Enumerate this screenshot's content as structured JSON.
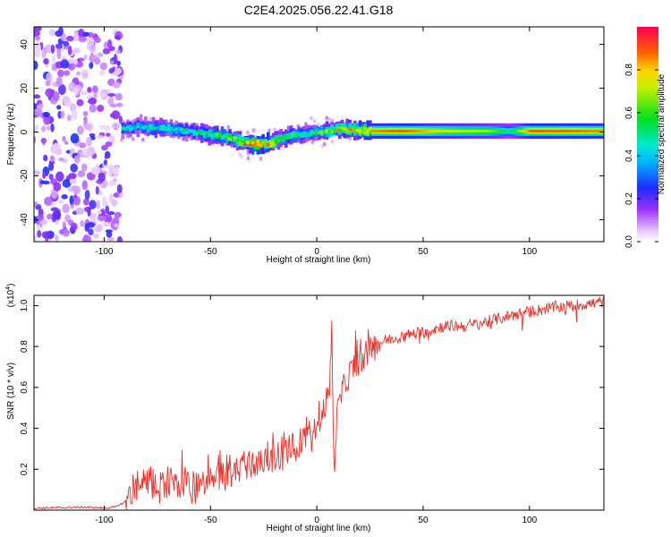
{
  "title": "C2E4.2025.056.22.41.G18",
  "chart_data": [
    {
      "type": "heatmap",
      "title": "C2E4.2025.056.22.41.G18",
      "xlabel": "Height of straight line (km)",
      "ylabel": "Frequency (Hz)",
      "xlim": [
        -133,
        135
      ],
      "ylim": [
        -50,
        48
      ],
      "x_ticks": [
        -100,
        -50,
        0,
        50,
        100
      ],
      "x_tick_labels": [
        "-100",
        "-50",
        "0",
        "50",
        "100"
      ],
      "y_ticks": [
        -40,
        -20,
        0,
        20,
        40
      ],
      "y_tick_labels": [
        "-40",
        "-20",
        "0",
        "20",
        "40"
      ],
      "colorbar": {
        "label": "Normalized spectral amplitude",
        "range": [
          0,
          1
        ],
        "ticks": [
          0.0,
          0.2,
          0.4,
          0.6,
          0.8
        ],
        "tick_labels": [
          "0.0",
          "0.2",
          "0.4",
          "0.6",
          "0.8"
        ],
        "colormap": "rainbow (white-violet-blue-cyan-green-yellow-red)"
      },
      "noise_region_x": [
        -133,
        -92
      ],
      "ridge_frequency": {
        "x": [
          -92,
          -85,
          -75,
          -65,
          -55,
          -45,
          -40,
          -35,
          -28,
          -22,
          -18,
          -12,
          -5,
          0,
          5,
          10,
          15,
          20,
          25,
          30,
          50,
          70,
          90,
          110,
          135
        ],
        "y": [
          1.5,
          2.5,
          2.0,
          1.0,
          -0.5,
          -2.0,
          -3.0,
          -5.0,
          -5.5,
          -5.0,
          -3.0,
          -1.5,
          -1.0,
          0.0,
          0.5,
          1.5,
          1.0,
          0.8,
          0.5,
          0.5,
          0.5,
          0.5,
          0.5,
          0.5,
          0.5
        ]
      },
      "ridge_amplitude": {
        "x": [
          -92,
          -80,
          -70,
          -60,
          -50,
          -40,
          -30,
          -20,
          -10,
          0,
          10,
          20,
          25,
          40,
          60,
          80,
          90,
          100,
          120,
          135
        ],
        "y": [
          0.4,
          0.45,
          0.5,
          0.45,
          0.55,
          0.6,
          0.95,
          0.7,
          0.5,
          0.55,
          0.75,
          0.8,
          0.85,
          0.9,
          0.75,
          0.7,
          0.5,
          0.9,
          0.88,
          0.85
        ]
      }
    },
    {
      "type": "line",
      "xlabel": "Height of straight line (km)",
      "ylabel": "SNR (10 * v/v)",
      "y_multiplier": "(x10",
      "y_multiplier_exp": "4",
      "y_multiplier_close": ")",
      "xlim": [
        -133,
        135
      ],
      "ylim": [
        0,
        1.05
      ],
      "x_ticks": [
        -100,
        -50,
        0,
        50,
        100
      ],
      "x_tick_labels": [
        "-100",
        "-50",
        "0",
        "50",
        "100"
      ],
      "y_ticks": [
        0.2,
        0.4,
        0.6,
        0.8,
        1.0
      ],
      "y_tick_labels": [
        "0.2",
        "0.4",
        "0.6",
        "0.8",
        "1.0"
      ],
      "line_color": "#e8312b",
      "series": [
        {
          "x": [
            -133,
            -120,
            -110,
            -100,
            -95,
            -90,
            -86,
            -82,
            -78,
            -74,
            -70,
            -66,
            -62,
            -58,
            -54,
            -50,
            -46,
            -42,
            -38,
            -34,
            -30,
            -26,
            -22,
            -18,
            -14,
            -10,
            -6,
            -3,
            0,
            2,
            4,
            6,
            7,
            8,
            9,
            10,
            12,
            15,
            18,
            22,
            26,
            30,
            35,
            40,
            50,
            60,
            70,
            80,
            90,
            100,
            110,
            120,
            130,
            135
          ],
          "y": [
            0.01,
            0.012,
            0.015,
            0.01,
            0.015,
            0.04,
            0.09,
            0.12,
            0.13,
            0.12,
            0.14,
            0.11,
            0.15,
            0.1,
            0.12,
            0.12,
            0.16,
            0.18,
            0.2,
            0.24,
            0.22,
            0.26,
            0.25,
            0.26,
            0.3,
            0.28,
            0.34,
            0.36,
            0.42,
            0.45,
            0.52,
            0.58,
            0.92,
            0.16,
            0.4,
            0.5,
            0.58,
            0.66,
            0.71,
            0.75,
            0.79,
            0.82,
            0.84,
            0.85,
            0.87,
            0.9,
            0.9,
            0.92,
            0.95,
            0.97,
            0.99,
            1.0,
            1.01,
            1.02
          ]
        }
      ]
    }
  ]
}
